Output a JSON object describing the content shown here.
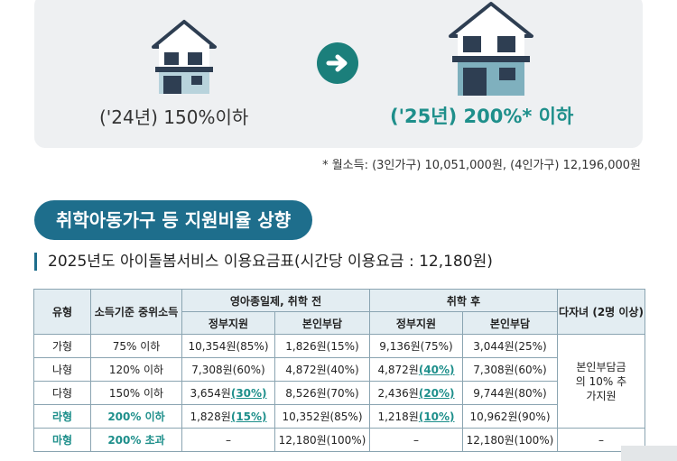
{
  "comparison": {
    "before_label": "('24년) 150%이하",
    "after_label": "('25년) 200%* 이하",
    "colors": {
      "house_roof": "#2e3e52",
      "house_wall": "#ffffff",
      "house_base": "#b8d3dc",
      "accent": "#1e8f8b"
    },
    "icons": [
      "house-icon",
      "arrow-right-icon",
      "house-icon"
    ]
  },
  "footnote": "* 월소득: (3인가구) 10,051,000원, (4인가구) 12,196,000원",
  "section": {
    "badge": "취학아동가구 등 지원비율 상향",
    "subtitle": "2025년도 아이돌봄서비스 이용요금표(시간당 이용요금 : 12,180원)"
  },
  "table": {
    "headers": {
      "type": "유형",
      "income": "소득기준 중위소득",
      "before_school": "영아종일제, 취학 전",
      "after_school": "취학 후",
      "gov": "정부지원",
      "self": "본인부담",
      "multi_child": "다자녀 (2명 이상)"
    },
    "rows": [
      {
        "type": "가형",
        "income": "75% 이하",
        "pre_gov": "10,354원(85%)",
        "pre_self": "1,826원(15%)",
        "post_gov": "9,136원(75%)",
        "post_self": "3,044원(25%)"
      },
      {
        "type": "나형",
        "income": "120% 이하",
        "pre_gov": "7,308원(60%)",
        "pre_self": "4,872원(40%)",
        "post_gov_a": "4,872원",
        "post_gov_b": "(40%)",
        "post_self": "7,308원(60%)"
      },
      {
        "type": "다형",
        "income": "150% 이하",
        "pre_gov_a": "3,654원",
        "pre_gov_b": "(30%)",
        "pre_self": "8,526원(70%)",
        "post_gov_a": "2,436원",
        "post_gov_b": "(20%)",
        "post_self": "9,744원(80%)"
      },
      {
        "type": "라형",
        "income": "200% 이하",
        "pre_gov_a": "1,828원",
        "pre_gov_b": "(15%)",
        "pre_self": "10,352원(85%)",
        "post_gov_a": "1,218원",
        "post_gov_b": "(10%)",
        "post_self": "10,962원(90%)"
      },
      {
        "type": "마형",
        "income": "200% 초과",
        "pre_gov": "–",
        "pre_self": "12,180원(100%)",
        "post_gov": "–",
        "post_self": "12,180원(100%)",
        "multi": "–"
      }
    ],
    "multi_child_note": "본인부담금의 10% 추가지원"
  }
}
